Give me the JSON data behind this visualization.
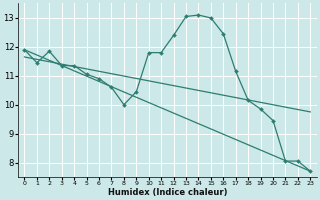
{
  "title": "",
  "xlabel": "Humidex (Indice chaleur)",
  "ylabel": "",
  "bg_color": "#cce8e8",
  "grid_color": "#ffffff",
  "line_color": "#2e7d70",
  "xlim": [
    -0.5,
    23.5
  ],
  "ylim": [
    7.5,
    13.5
  ],
  "xticks": [
    0,
    1,
    2,
    3,
    4,
    5,
    6,
    7,
    8,
    9,
    10,
    11,
    12,
    13,
    14,
    15,
    16,
    17,
    18,
    19,
    20,
    21,
    22,
    23
  ],
  "yticks": [
    8,
    9,
    10,
    11,
    12,
    13
  ],
  "main_curve": {
    "x": [
      0,
      1,
      2,
      3,
      4,
      5,
      6,
      7,
      8,
      9,
      10,
      11,
      12,
      13,
      14,
      15,
      16,
      17,
      18,
      19,
      20,
      21,
      22,
      23
    ],
    "y": [
      11.9,
      11.45,
      11.85,
      11.35,
      11.35,
      11.05,
      10.9,
      10.6,
      10.0,
      10.45,
      11.8,
      11.8,
      12.4,
      13.05,
      13.1,
      13.0,
      12.45,
      11.15,
      10.15,
      9.85,
      9.45,
      8.05,
      8.05,
      7.7
    ]
  },
  "line1": {
    "x": [
      0,
      23
    ],
    "y": [
      11.9,
      7.7
    ]
  },
  "line2": {
    "x": [
      0,
      23
    ],
    "y": [
      11.65,
      9.75
    ]
  }
}
